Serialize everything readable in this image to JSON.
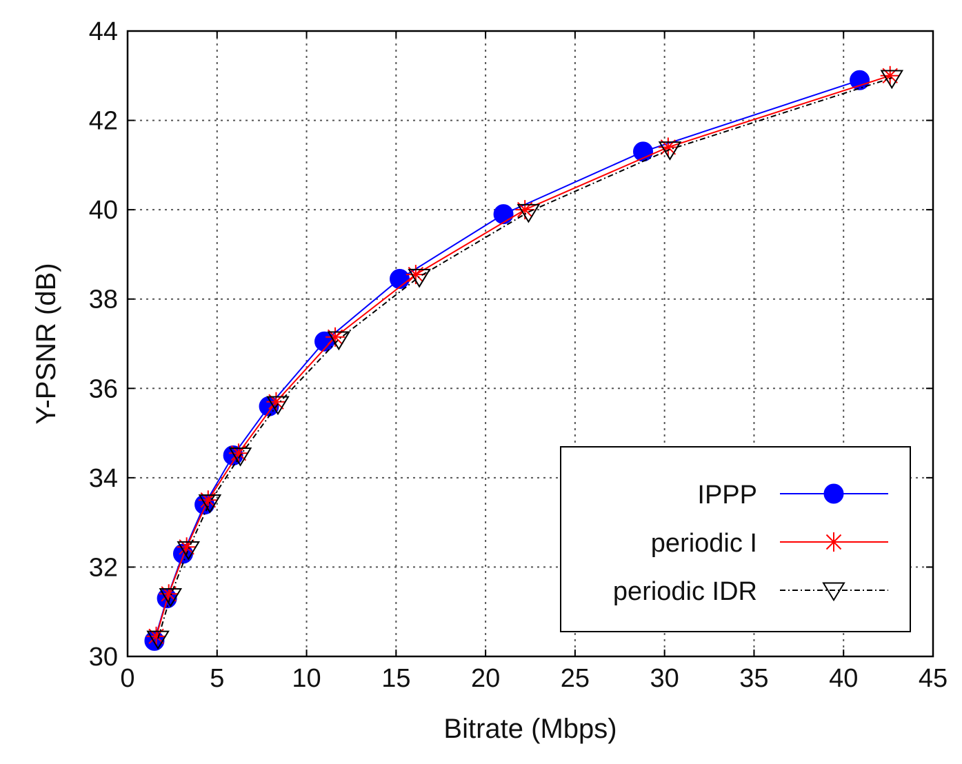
{
  "chart_data": {
    "type": "line",
    "title": "",
    "xlabel": "Bitrate (Mbps)",
    "ylabel": "Y-PSNR (dB)",
    "xlim": [
      0,
      45
    ],
    "ylim": [
      30,
      44
    ],
    "xticks": [
      0,
      5,
      10,
      15,
      20,
      25,
      30,
      35,
      40,
      45
    ],
    "yticks": [
      30,
      32,
      34,
      36,
      38,
      40,
      42,
      44
    ],
    "grid": true,
    "legend_position": "bottom-right",
    "series": [
      {
        "name": "IPPP",
        "color": "#0000ff",
        "marker": "filled-circle",
        "line_style": "solid",
        "x": [
          1.5,
          2.2,
          3.1,
          4.3,
          5.9,
          7.9,
          11.0,
          15.2,
          21.0,
          28.8,
          40.9
        ],
        "y": [
          30.35,
          31.3,
          32.3,
          33.4,
          34.5,
          35.6,
          37.05,
          38.45,
          39.9,
          41.3,
          42.9
        ]
      },
      {
        "name": "periodic I",
        "color": "#ff0000",
        "marker": "asterisk",
        "line_style": "solid",
        "x": [
          1.6,
          2.3,
          3.3,
          4.5,
          6.2,
          8.3,
          11.6,
          16.1,
          22.2,
          30.2,
          42.6
        ],
        "y": [
          30.45,
          31.4,
          32.45,
          33.5,
          34.55,
          35.7,
          37.15,
          38.55,
          40.0,
          41.4,
          43.0
        ]
      },
      {
        "name": "periodic IDR",
        "color": "#000000",
        "marker": "open-down-triangle",
        "line_style": "dash-dot",
        "x": [
          1.7,
          2.4,
          3.4,
          4.6,
          6.3,
          8.4,
          11.8,
          16.3,
          22.4,
          30.3,
          42.7
        ],
        "y": [
          30.4,
          31.35,
          32.4,
          33.45,
          34.5,
          35.65,
          37.1,
          38.5,
          39.95,
          41.35,
          42.95
        ]
      }
    ]
  }
}
